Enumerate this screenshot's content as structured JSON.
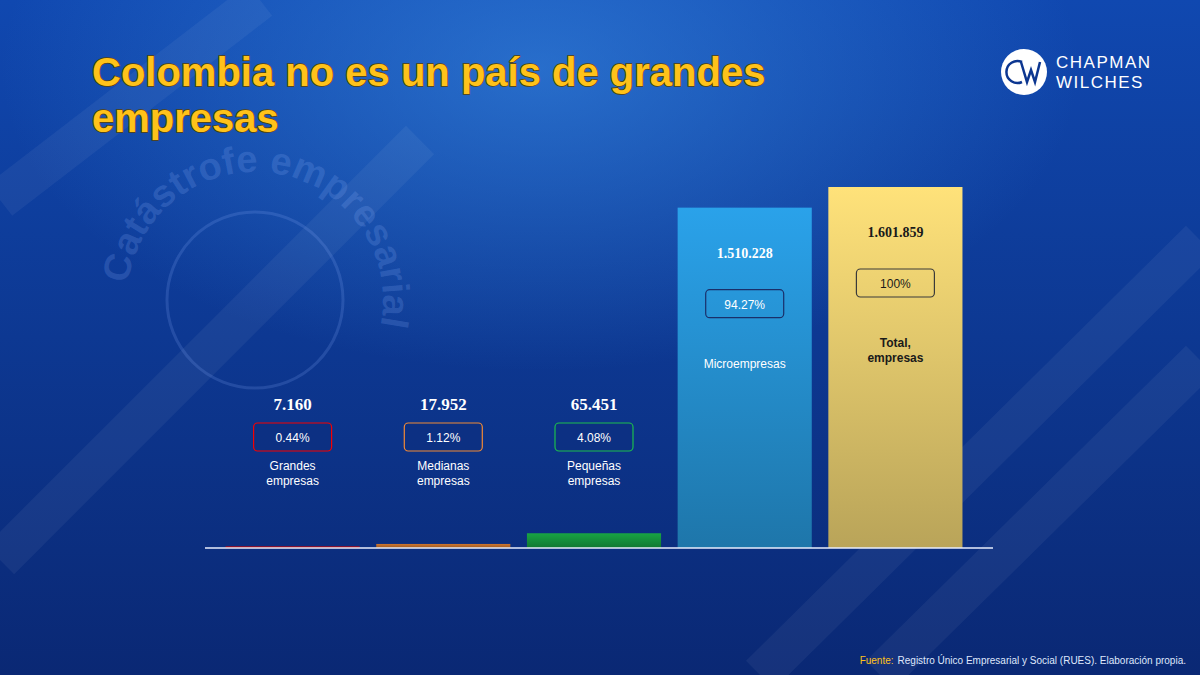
{
  "chart_data": {
    "type": "bar",
    "title": "Colombia no es un país de grandes empresas",
    "categories": [
      "Grandes empresas",
      "Medianas empresas",
      "Pequeñas empresas",
      "Microempresas",
      "Total, empresas"
    ],
    "values": [
      7160,
      17952,
      65451,
      1510228,
      1601859
    ],
    "value_labels": [
      "7.160",
      "17.952",
      "65.451",
      "1.510.228",
      "1.601.859"
    ],
    "shares": [
      0.44,
      1.12,
      4.08,
      94.27,
      100
    ],
    "share_labels": [
      "0.44%",
      "1.12%",
      "4.08%",
      "94.27%",
      "100%"
    ],
    "colors": [
      "#d40000",
      "#d0772f",
      "#18a444",
      "#2aa2ea",
      "#ffe27a"
    ],
    "ylim": [
      0,
      1601859
    ],
    "tick_labels": false,
    "data_labels": true,
    "source": {
      "label": "Fuente:",
      "text": "Registro Único Empresarial y Social (RUES). Elaboración propia."
    },
    "annotations": [
      "Catástrofe empresarial",
      "CHAPMAN",
      "WILCHES"
    ]
  }
}
